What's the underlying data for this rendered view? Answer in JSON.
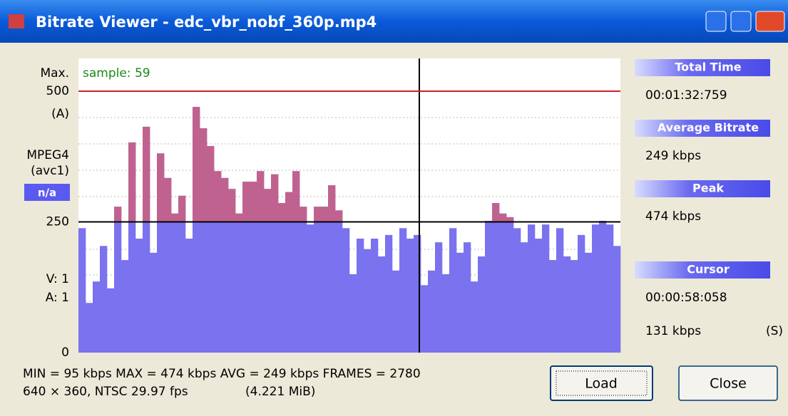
{
  "window": {
    "title": "Bitrate Viewer - edc_vbr_nobf_360p.mp4"
  },
  "chart_data": {
    "type": "bar",
    "annotation": "sample: 59",
    "left_labels": {
      "max": "Max.",
      "a": "(A)",
      "codec": "MPEG4",
      "fourcc": "(avc1)",
      "badge": "n/a",
      "v": "V: 1",
      "a2": "A: 1"
    },
    "ylim": [
      0,
      500
    ],
    "yticks": [
      0,
      250,
      500
    ],
    "color": "#7a72ee",
    "over_color": "#c0628f",
    "values": [
      238,
      95,
      136,
      204,
      123,
      279,
      177,
      402,
      218,
      432,
      191,
      381,
      334,
      266,
      300,
      218,
      470,
      429,
      395,
      347,
      334,
      313,
      266,
      327,
      327,
      347,
      313,
      341,
      286,
      307,
      347,
      279,
      245,
      279,
      279,
      320,
      272,
      238,
      150,
      218,
      198,
      218,
      184,
      225,
      157,
      238,
      218,
      225,
      129,
      157,
      211,
      150,
      238,
      191,
      211,
      136,
      184,
      252,
      286,
      266,
      259,
      238,
      211,
      245,
      218,
      245,
      177,
      238,
      184,
      177,
      225,
      191,
      245,
      252,
      245,
      204
    ]
  },
  "panel": [
    {
      "header": "Total Time",
      "value": "00:01:32:759"
    },
    {
      "header": "Average Bitrate",
      "value": "249 kbps"
    },
    {
      "header": "Peak",
      "value": "474 kbps"
    },
    {
      "header": "Cursor",
      "value": "00:00:58:058",
      "value2": "131 kbps",
      "mode": "(S)"
    }
  ],
  "stats": {
    "line1": "MIN = 95 kbps  MAX = 474 kbps  AVG = 249 kbps  FRAMES = 2780",
    "line2": "640 × 360, NTSC 29.97 fps",
    "line2b": "(4.221 MiB)"
  },
  "buttons": [
    "Load",
    "Close"
  ]
}
